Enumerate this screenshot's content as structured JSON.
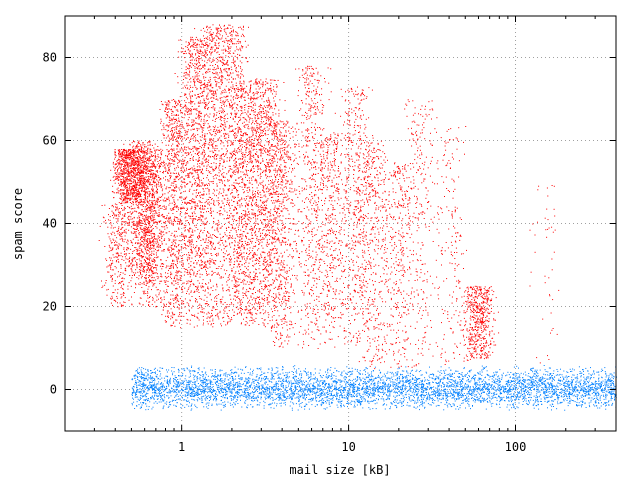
{
  "chart_data": {
    "type": "scatter",
    "title": "",
    "xlabel": "mail size [kB]",
    "ylabel": "spam score",
    "x_scale": "log",
    "xlim": [
      0.2,
      400
    ],
    "ylim": [
      -10,
      90
    ],
    "x_ticks": [
      {
        "value": 1,
        "label": "1"
      },
      {
        "value": 10,
        "label": "10"
      },
      {
        "value": 100,
        "label": "100"
      }
    ],
    "y_ticks": [
      {
        "value": 0,
        "label": "0"
      },
      {
        "value": 20,
        "label": "20"
      },
      {
        "value": 40,
        "label": "40"
      },
      {
        "value": 60,
        "label": "60"
      },
      {
        "value": 80,
        "label": "80"
      }
    ],
    "grid": true,
    "legend": "none",
    "series": [
      {
        "color": "#ff0000",
        "clusters": [
          {
            "x": 0.42,
            "y_min": 20,
            "y_max": 45,
            "density": 0.4
          },
          {
            "x": 0.48,
            "y_min": 45,
            "y_max": 58,
            "density": 0.9
          },
          {
            "x": 0.58,
            "y_min": 25,
            "y_max": 60,
            "density": 0.8
          },
          {
            "x": 0.65,
            "y_min": 20,
            "y_max": 58,
            "density": 0.8
          },
          {
            "x": 0.9,
            "y_min": 15,
            "y_max": 70,
            "density": 1.0
          },
          {
            "x": 1.2,
            "y_min": 15,
            "y_max": 85,
            "density": 1.0
          },
          {
            "x": 1.5,
            "y_min": 15,
            "y_max": 88,
            "density": 1.0
          },
          {
            "x": 2.0,
            "y_min": 15,
            "y_max": 88,
            "density": 1.0
          },
          {
            "x": 2.5,
            "y_min": 15,
            "y_max": 75,
            "density": 0.9
          },
          {
            "x": 3.2,
            "y_min": 15,
            "y_max": 75,
            "density": 0.9
          },
          {
            "x": 4.0,
            "y_min": 10,
            "y_max": 65,
            "density": 0.7
          },
          {
            "x": 6.0,
            "y_min": 10,
            "y_max": 78,
            "density": 0.6
          },
          {
            "x": 8.0,
            "y_min": 10,
            "y_max": 62,
            "density": 0.5
          },
          {
            "x": 11.0,
            "y_min": 10,
            "y_max": 73,
            "density": 0.5
          },
          {
            "x": 14.0,
            "y_min": 5,
            "y_max": 60,
            "density": 0.5
          },
          {
            "x": 20.0,
            "y_min": 5,
            "y_max": 55,
            "density": 0.4
          },
          {
            "x": 27.0,
            "y_min": 5,
            "y_max": 70,
            "density": 0.3
          },
          {
            "x": 40.0,
            "y_min": 5,
            "y_max": 64,
            "density": 0.2
          },
          {
            "x": 60.0,
            "y_min": 7,
            "y_max": 25,
            "density": 0.6
          },
          {
            "x": 150.0,
            "y_min": 5,
            "y_max": 50,
            "density": 0.05
          }
        ]
      },
      {
        "color": "#0080ff",
        "clusters": [
          {
            "x_min": 0.5,
            "x_max": 400,
            "y_min": -5,
            "y_max": 6,
            "density": 1.0
          }
        ]
      }
    ]
  }
}
